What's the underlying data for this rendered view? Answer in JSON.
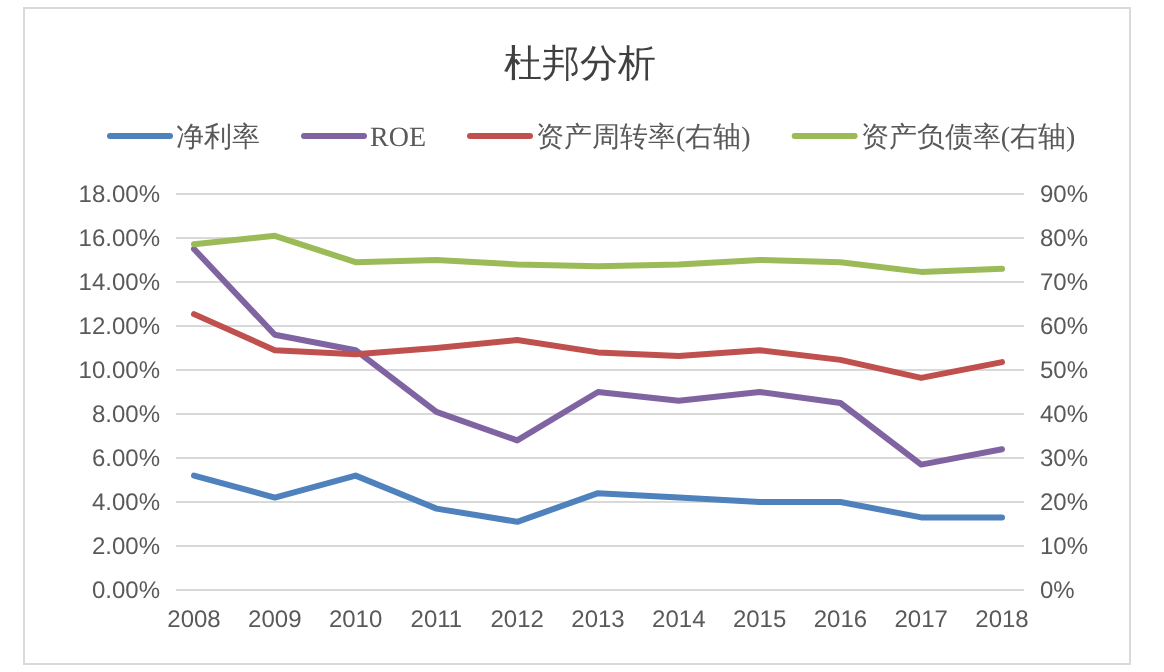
{
  "chart_data": {
    "type": "line",
    "title": "杜邦分析",
    "categories": [
      "2008",
      "2009",
      "2010",
      "2011",
      "2012",
      "2013",
      "2014",
      "2015",
      "2016",
      "2017",
      "2018"
    ],
    "series": [
      {
        "name": "净利率",
        "color": "#4f81bd",
        "values": [
          5.2,
          4.2,
          5.2,
          3.7,
          3.1,
          4.4,
          4.2,
          4.0,
          4.0,
          3.3,
          3.3
        ]
      },
      {
        "name": "ROE",
        "color": "#8064a2",
        "values": [
          15.5,
          11.6,
          10.9,
          8.1,
          6.8,
          9.0,
          8.6,
          9.0,
          8.5,
          5.7,
          6.4
        ]
      },
      {
        "name": "资产周转率(右轴)",
        "color": "#c0504d",
        "axis": "y2",
        "values": [
          62.7,
          54.5,
          53.6,
          55,
          56.8,
          54,
          53.2,
          54.5,
          52.3,
          48.2,
          51.8
        ]
      },
      {
        "name": "资产负债率(右轴)",
        "color": "#9bbb59",
        "axis": "y2",
        "values": [
          78.6,
          80.5,
          74.5,
          75,
          74,
          73.6,
          74,
          75,
          74.5,
          72.3,
          73
        ]
      }
    ],
    "ylim": [
      0,
      18
    ],
    "yticks": [
      {
        "value": 0,
        "label": "0.00%"
      },
      {
        "value": 2,
        "label": "2.00%"
      },
      {
        "value": 4,
        "label": "4.00%"
      },
      {
        "value": 6,
        "label": "6.00%"
      },
      {
        "value": 8,
        "label": "8.00%"
      },
      {
        "value": 10,
        "label": "10.00%"
      },
      {
        "value": 12,
        "label": "12.00%"
      },
      {
        "value": 14,
        "label": "14.00%"
      },
      {
        "value": 16,
        "label": "16.00%"
      },
      {
        "value": 18,
        "label": "18.00%"
      }
    ],
    "y2lim": [
      0,
      90
    ],
    "y2ticks": [
      {
        "value": 0,
        "label": "0%"
      },
      {
        "value": 10,
        "label": "10%"
      },
      {
        "value": 20,
        "label": "20%"
      },
      {
        "value": 30,
        "label": "30%"
      },
      {
        "value": 40,
        "label": "40%"
      },
      {
        "value": 50,
        "label": "50%"
      },
      {
        "value": 60,
        "label": "60%"
      },
      {
        "value": 70,
        "label": "70%"
      },
      {
        "value": 80,
        "label": "80%"
      },
      {
        "value": 90,
        "label": "90%"
      }
    ],
    "grid": "y",
    "legend": "top",
    "marker": "none",
    "line_style": "solid"
  }
}
